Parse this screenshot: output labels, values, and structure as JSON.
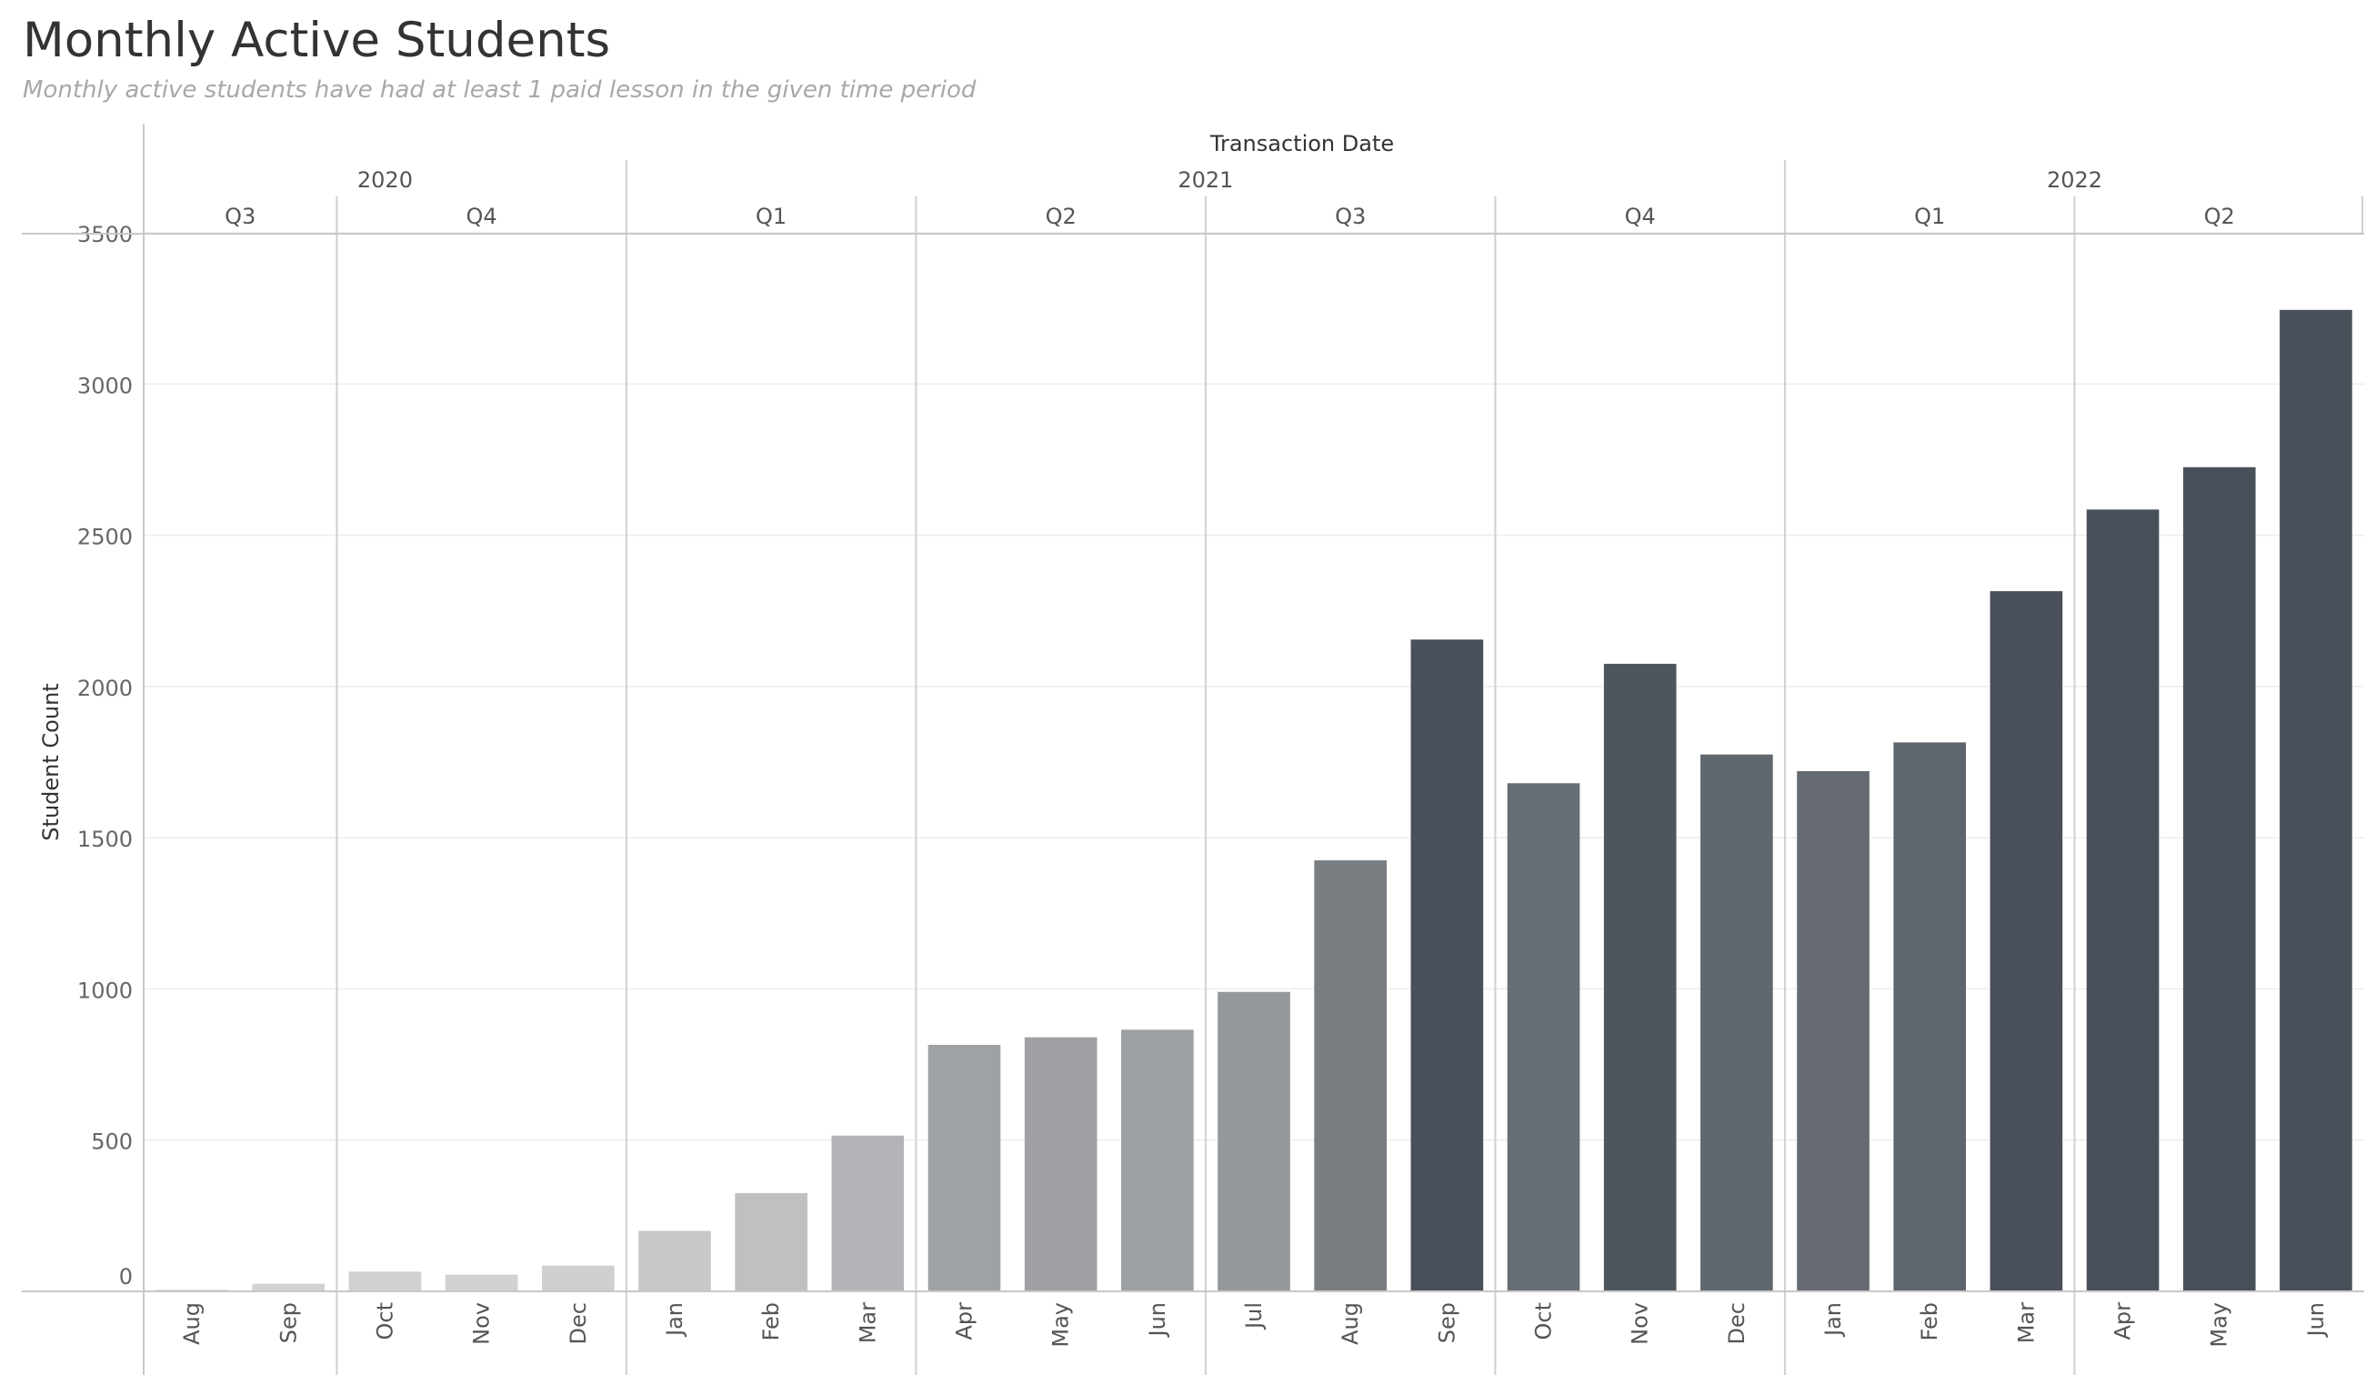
{
  "title": "Monthly Active Students",
  "subtitle": "Monthly active students have had at least 1 paid lesson in the given time period",
  "chart_data": {
    "type": "bar",
    "title": "Monthly Active Students",
    "header_label": "Transaction Date",
    "xlabel": "Transaction Date",
    "ylabel": "Student Count",
    "ylim": [
      0,
      3500
    ],
    "yticks": [
      0,
      500,
      1000,
      1500,
      2000,
      2500,
      3000,
      3500
    ],
    "grid": true,
    "years": [
      {
        "label": "2020",
        "quarters": [
          {
            "label": "Q3",
            "months": [
              "Aug",
              "Sep"
            ]
          },
          {
            "label": "Q4",
            "months": [
              "Oct",
              "Nov",
              "Dec"
            ]
          }
        ]
      },
      {
        "label": "2021",
        "quarters": [
          {
            "label": "Q1",
            "months": [
              "Jan",
              "Feb",
              "Mar"
            ]
          },
          {
            "label": "Q2",
            "months": [
              "Apr",
              "May",
              "Jun"
            ]
          },
          {
            "label": "Q3",
            "months": [
              "Jul",
              "Aug",
              "Sep"
            ]
          },
          {
            "label": "Q4",
            "months": [
              "Oct",
              "Nov",
              "Dec"
            ]
          }
        ]
      },
      {
        "label": "2022",
        "quarters": [
          {
            "label": "Q1",
            "months": [
              "Jan",
              "Feb",
              "Mar"
            ]
          },
          {
            "label": "Q2",
            "months": [
              "Apr",
              "May",
              "Jun"
            ]
          }
        ]
      }
    ],
    "categories": [
      "Aug",
      "Sep",
      "Oct",
      "Nov",
      "Dec",
      "Jan",
      "Feb",
      "Mar",
      "Apr",
      "May",
      "Jun",
      "Jul",
      "Aug",
      "Sep",
      "Oct",
      "Nov",
      "Dec",
      "Jan",
      "Feb",
      "Mar",
      "Apr",
      "May",
      "Jun"
    ],
    "values": [
      5,
      25,
      65,
      55,
      85,
      200,
      325,
      515,
      815,
      840,
      865,
      990,
      1425,
      2155,
      1680,
      2075,
      1775,
      1720,
      1815,
      2315,
      2585,
      2725,
      3245
    ],
    "color_scale": {
      "low": "#d4d4d4",
      "high": "#495059",
      "max_value": 2150
    }
  }
}
